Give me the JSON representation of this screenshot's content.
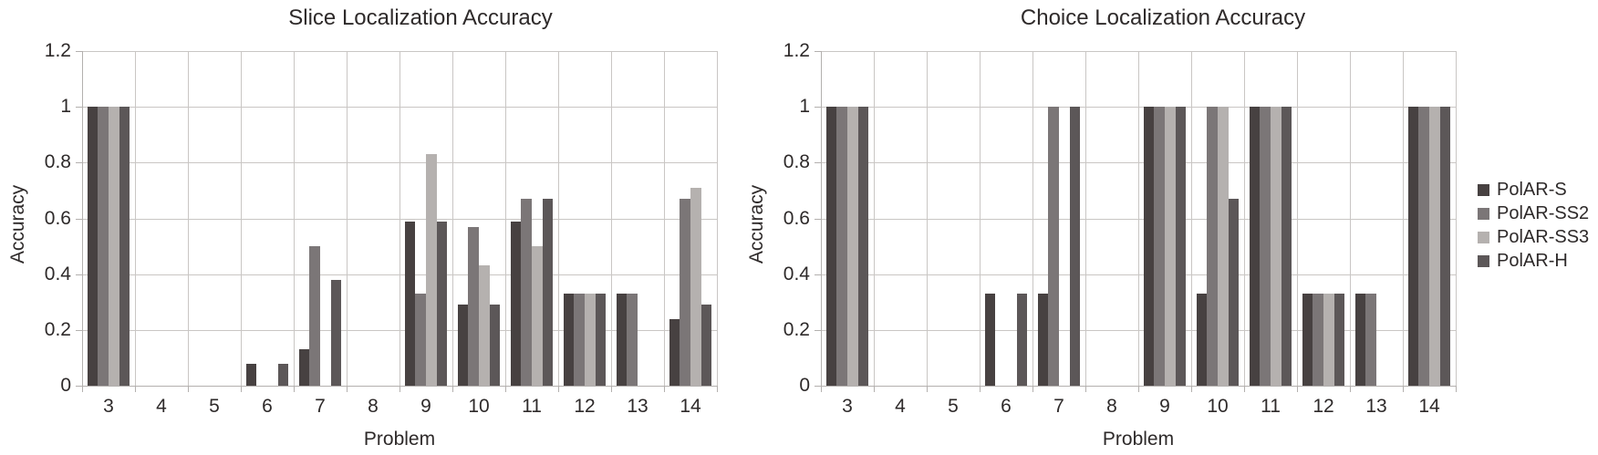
{
  "page": {
    "background": "#ffffff"
  },
  "legend": {
    "position": "right",
    "items": [
      {
        "label": "PolAR-S",
        "color": "#474141"
      },
      {
        "label": "PolAR-SS2",
        "color": "#7b7677"
      },
      {
        "label": "PolAR-SS3",
        "color": "#b5b1af"
      },
      {
        "label": "PolAR-H",
        "color": "#5c5758"
      }
    ]
  },
  "chart_data": [
    {
      "type": "bar",
      "title": "Slice Localization Accuracy",
      "xlabel": "Problem",
      "ylabel": "Accuracy",
      "ylim": [
        0,
        1.2
      ],
      "yticks": [
        "1.2",
        "1",
        "0.8",
        "0.6",
        "0.4",
        "0.2",
        "0"
      ],
      "grid": true,
      "legend_shown": false,
      "categories": [
        "3",
        "4",
        "5",
        "6",
        "7",
        "8",
        "9",
        "10",
        "11",
        "12",
        "13",
        "14"
      ],
      "series": [
        {
          "name": "PolAR-S",
          "color": "#474141",
          "values": [
            1,
            0,
            0,
            0.08,
            0.13,
            0,
            0.59,
            0.29,
            0.59,
            0.33,
            0.33,
            0.24
          ]
        },
        {
          "name": "PolAR-SS2",
          "color": "#7b7677",
          "values": [
            1,
            0,
            0,
            0,
            0.5,
            0,
            0.33,
            0.57,
            0.67,
            0.33,
            0.33,
            0.67
          ]
        },
        {
          "name": "PolAR-SS3",
          "color": "#b5b1af",
          "values": [
            1,
            0,
            0,
            0,
            0,
            0,
            0.83,
            0.43,
            0.5,
            0.33,
            0,
            0.71
          ]
        },
        {
          "name": "PolAR-H",
          "color": "#5c5758",
          "values": [
            1,
            0,
            0,
            0.08,
            0.38,
            0,
            0.59,
            0.29,
            0.67,
            0.33,
            0,
            0.29
          ]
        }
      ]
    },
    {
      "type": "bar",
      "title": "Choice Localization Accuracy",
      "xlabel": "Problem",
      "ylabel": "Accuracy",
      "ylim": [
        0,
        1.2
      ],
      "yticks": [
        "1.2",
        "1",
        "0.8",
        "0.6",
        "0.4",
        "0.2",
        "0"
      ],
      "grid": true,
      "legend_shown": true,
      "categories": [
        "3",
        "4",
        "5",
        "6",
        "7",
        "8",
        "9",
        "10",
        "11",
        "12",
        "13",
        "14"
      ],
      "series": [
        {
          "name": "PolAR-S",
          "color": "#474141",
          "values": [
            1,
            0,
            0,
            0.33,
            0.33,
            0,
            1,
            0.33,
            1,
            0.33,
            0.33,
            1
          ]
        },
        {
          "name": "PolAR-SS2",
          "color": "#7b7677",
          "values": [
            1,
            0,
            0,
            0,
            1,
            0,
            1,
            1,
            1,
            0.33,
            0.33,
            1
          ]
        },
        {
          "name": "PolAR-SS3",
          "color": "#b5b1af",
          "values": [
            1,
            0,
            0,
            0,
            0,
            0,
            1,
            1,
            1,
            0.33,
            0,
            1
          ]
        },
        {
          "name": "PolAR-H",
          "color": "#5c5758",
          "values": [
            1,
            0,
            0,
            0.33,
            1,
            0,
            1,
            0.67,
            1,
            0.33,
            0,
            1
          ]
        }
      ]
    }
  ],
  "colors": {
    "gridline": "#c9c6c4",
    "axis": "#b3b0ae",
    "text": "#2e2a2a"
  }
}
